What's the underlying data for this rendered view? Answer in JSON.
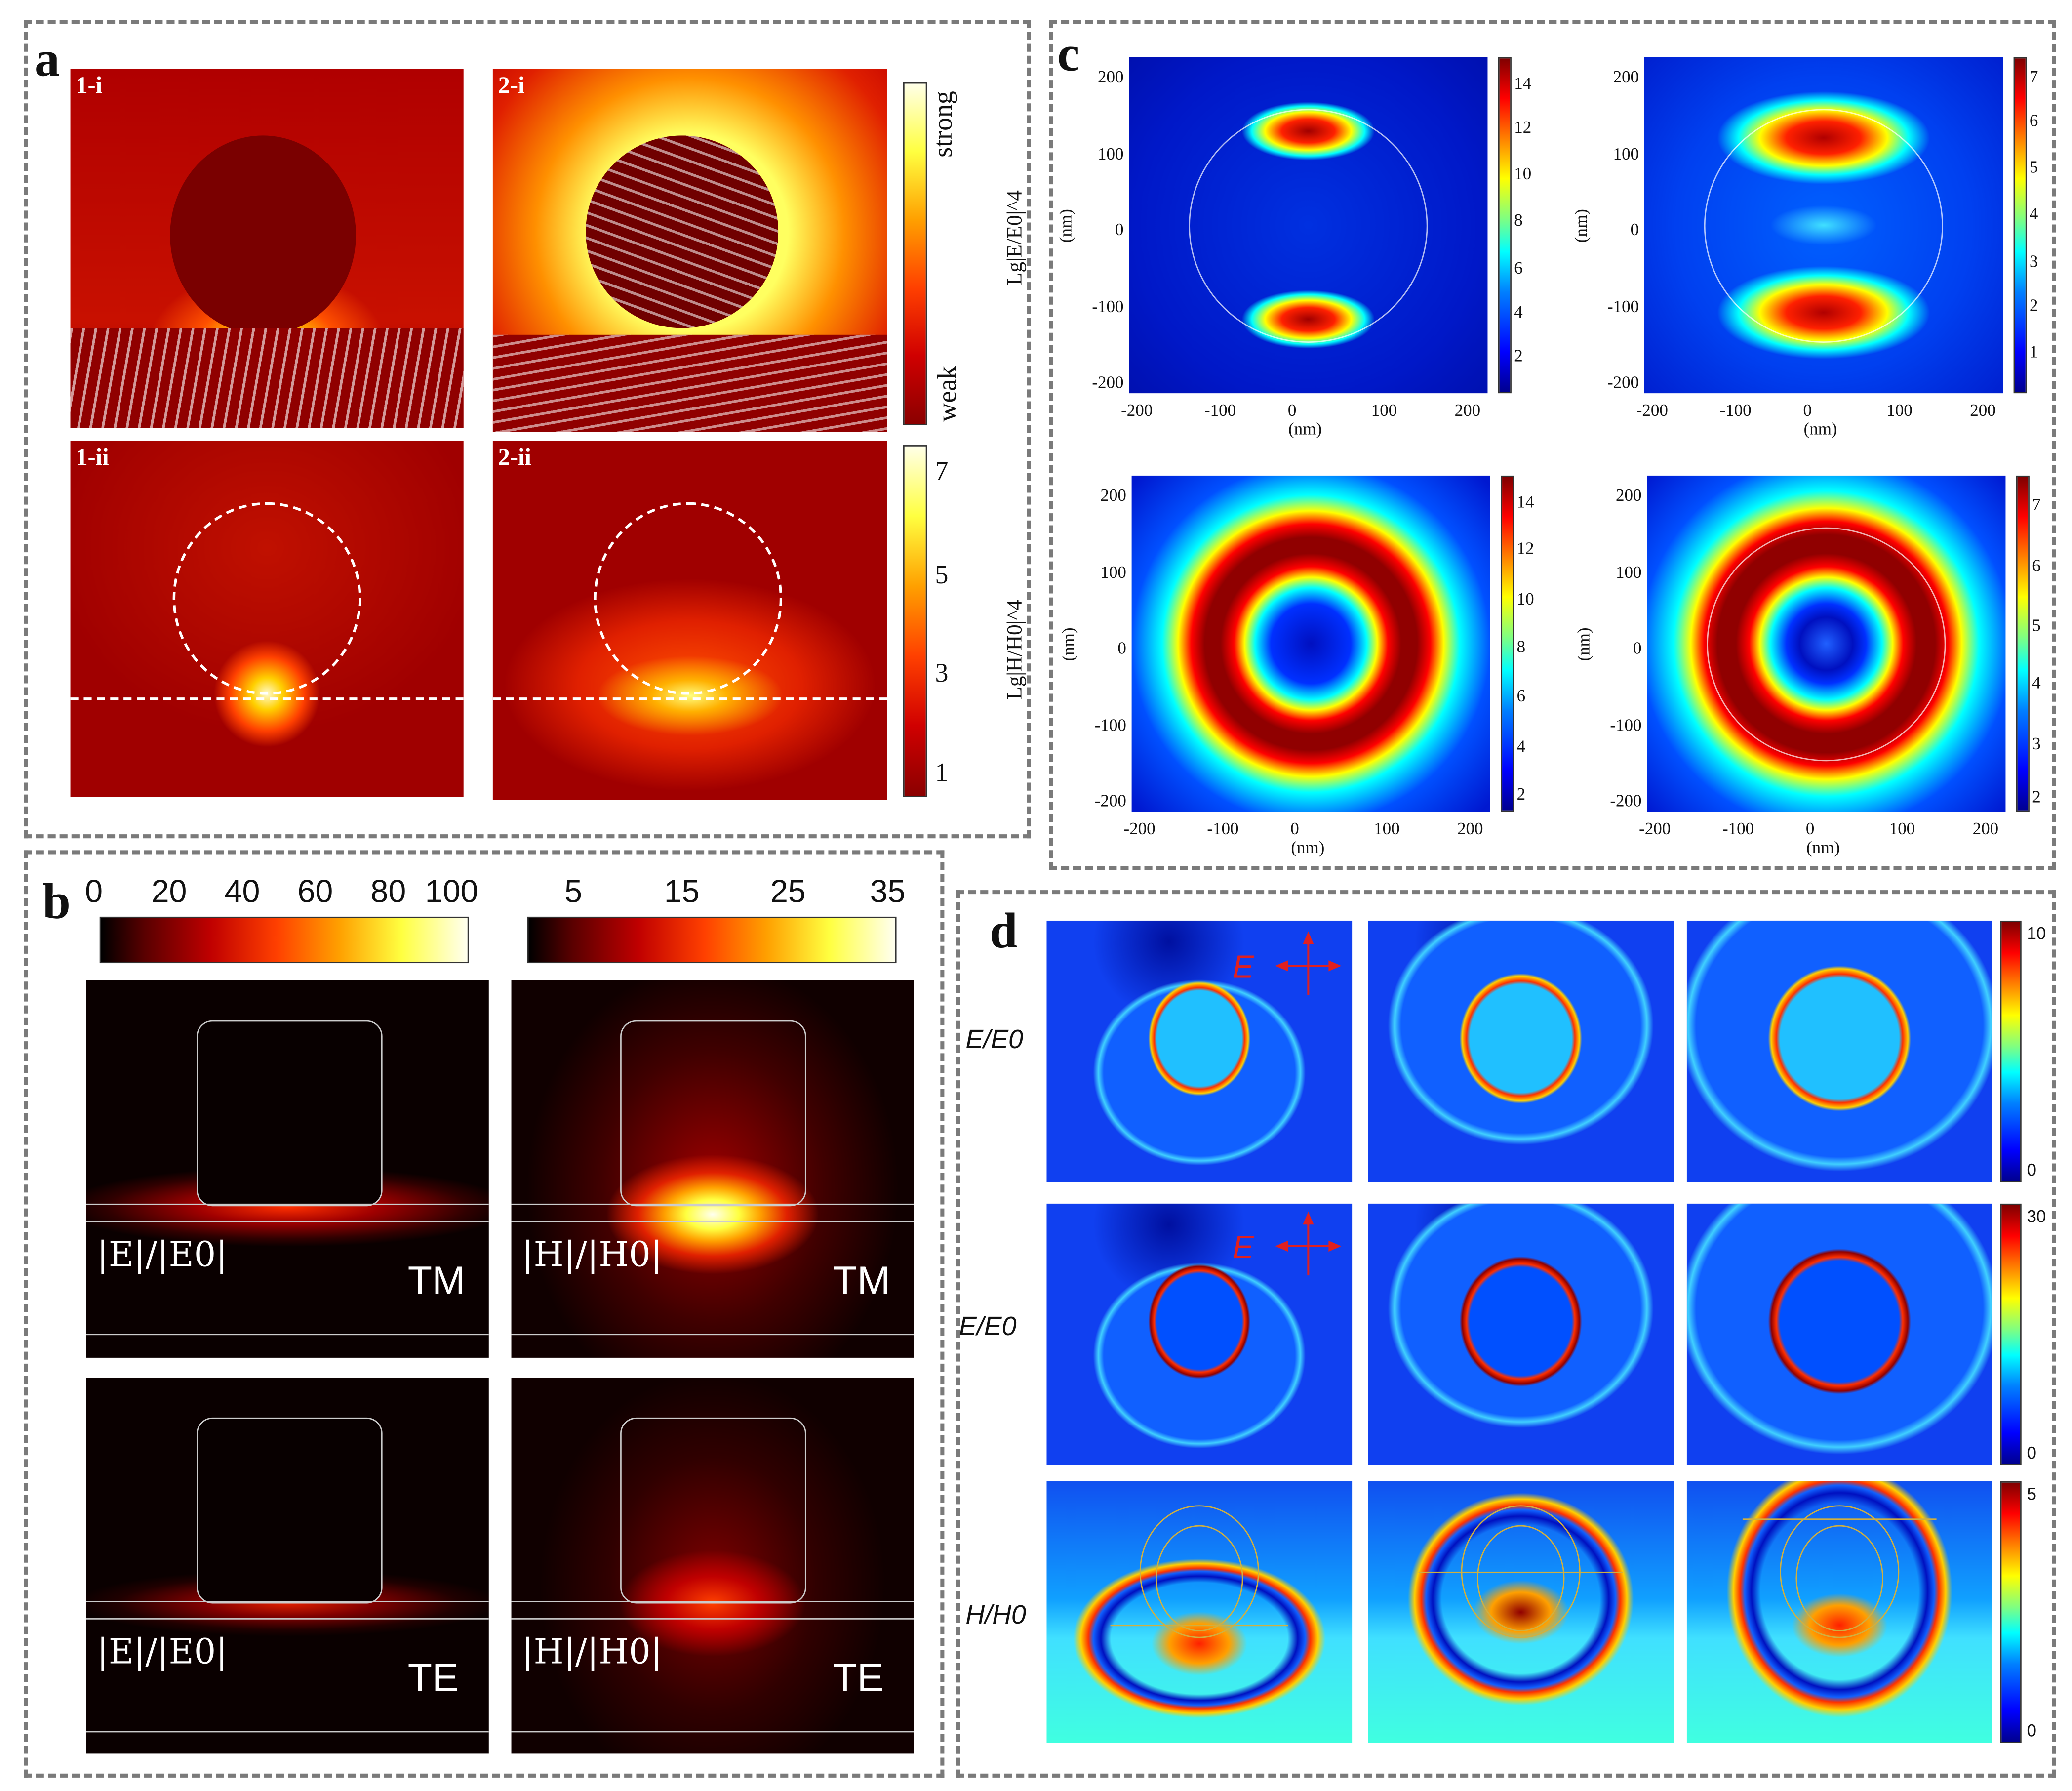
{
  "panels": {
    "a": {
      "label": "a",
      "sublabels": [
        "1-i",
        "2-i",
        "1-ii",
        "2-ii"
      ],
      "colorbar_top": {
        "high": "strong",
        "low": "weak",
        "colormap": "hot"
      },
      "colorbar_bottom": {
        "ticks": [
          "7",
          "5",
          "3",
          "1"
        ],
        "colormap": "hot"
      }
    },
    "b": {
      "label": "b",
      "colorbar_left": {
        "ticks": [
          "0",
          "20",
          "40",
          "60",
          "80",
          "100"
        ],
        "colormap": "black-red-yellow-white"
      },
      "colorbar_right": {
        "ticks": [
          "5",
          "15",
          "25",
          "35"
        ],
        "colormap": "black-red-yellow-white"
      },
      "maps": [
        {
          "quantity": "|E|",
          "denominator": "|E0|",
          "mode": "TM"
        },
        {
          "quantity": "|H|",
          "denominator": "|H0|",
          "mode": "TM"
        },
        {
          "quantity": "|E|",
          "denominator": "|E0|",
          "mode": "TE"
        },
        {
          "quantity": "|H|",
          "denominator": "|H0|",
          "mode": "TE"
        }
      ]
    },
    "c": {
      "label": "c",
      "row_labels": [
        "Lg|E/E0|^4",
        "Lg|H/H0|^4"
      ],
      "axis_unit": "(nm)",
      "axis_ticks": [
        "-200",
        "-100",
        "0",
        "100",
        "200"
      ],
      "y_ticks": [
        "200",
        "100",
        "0",
        "-100",
        "-200"
      ],
      "colorbar_ticks": {
        "top_left": [
          "14",
          "12",
          "10",
          "8",
          "6",
          "4",
          "2"
        ],
        "top_right": [
          "7",
          "6",
          "5",
          "4",
          "3",
          "2",
          "1"
        ],
        "bottom_left": [
          "14",
          "12",
          "10",
          "8",
          "6",
          "4",
          "2"
        ],
        "bottom_right": [
          "7",
          "6",
          "5",
          "4",
          "3",
          "2"
        ]
      },
      "colormap": "jet"
    },
    "d": {
      "label": "d",
      "row_labels": [
        "E/E0",
        "E/E0",
        "H/H0"
      ],
      "polarization_label": "E",
      "colorbar_ticks": [
        [
          "10",
          "0"
        ],
        [
          "30",
          "0"
        ],
        [
          "5",
          "0"
        ]
      ],
      "colormap": "jet",
      "accent_color": "#e02020"
    }
  }
}
